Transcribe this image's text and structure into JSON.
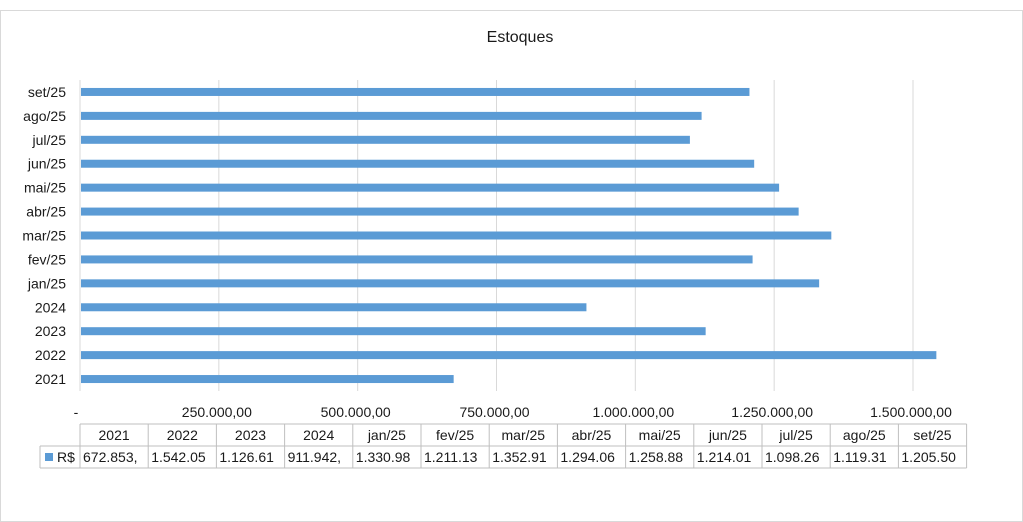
{
  "chart_data": {
    "type": "bar",
    "orientation": "horizontal",
    "title": "Estoques",
    "categories": [
      "2021",
      "2022",
      "2023",
      "2024",
      "jan/25",
      "fev/25",
      "mar/25",
      "abr/25",
      "mai/25",
      "jun/25",
      "jul/25",
      "ago/25",
      "set/25"
    ],
    "series": [
      {
        "name": "R$",
        "color": "#5b9bd5",
        "values": [
          672853,
          1542050,
          1126610,
          911942,
          1330980,
          1211130,
          1352910,
          1294060,
          1258880,
          1214010,
          1098260,
          1119310,
          1205500
        ]
      }
    ],
    "xlim": [
      0,
      1500000
    ],
    "x_ticks": [
      "-",
      "250.000,00",
      "500.000,00",
      "750.000,00",
      "1.000.000,00",
      "1.250.000,00",
      "1.500.000,00"
    ],
    "grid": "vertical",
    "data_table": {
      "header": [
        "2021",
        "2022",
        "2023",
        "2024",
        "jan/25",
        "fev/25",
        "mar/25",
        "abr/25",
        "mai/25",
        "jun/25",
        "jul/25",
        "ago/25",
        "set/25"
      ],
      "row_label": "R$",
      "cells": [
        "672.853,",
        "1.542.05",
        "1.126.61",
        "911.942,",
        "1.330.98",
        "1.211.13",
        "1.352.91",
        "1.294.06",
        "1.258.88",
        "1.214.01",
        "1.098.26",
        "1.119.31",
        "1.205.50"
      ]
    }
  }
}
